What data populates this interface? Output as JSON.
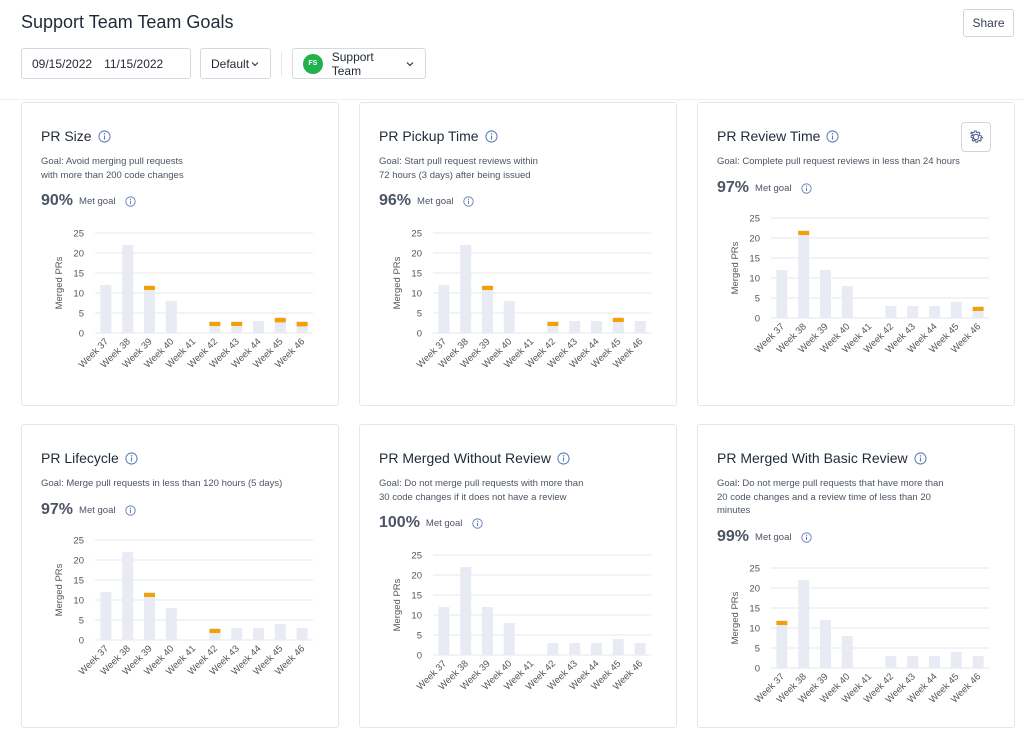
{
  "header": {
    "title": "Support Team Team Goals",
    "share_label": "Share",
    "date_start": "09/15/2022",
    "date_end": "11/15/2022",
    "view_select": "Default",
    "team_initials": "FS",
    "team_name": "Support Team",
    "team_color": "#22b14c"
  },
  "colors": {
    "bar": "#e8ebf3",
    "marker": "#f5a000",
    "grid": "#e5e7eb",
    "axis_text": "#555555"
  },
  "cards": [
    {
      "title": "PR Size",
      "goal": "Goal: Avoid merging pull requests with more than 200 code changes",
      "percent": "90%",
      "met_label": "Met goal",
      "chart_data": {
        "type": "bar",
        "ylabel": "Merged PRs",
        "ylim": [
          0,
          25
        ],
        "yticks": [
          "0",
          "5",
          "10",
          "15",
          "20",
          "25"
        ],
        "categories": [
          "Week 37",
          "Week 38",
          "Week 39",
          "Week 40",
          "Week 41",
          "Week 42",
          "Week 43",
          "Week 44",
          "Week 45",
          "Week 46"
        ],
        "values": [
          12,
          22,
          12,
          8,
          0,
          3,
          3,
          3,
          4,
          3
        ],
        "missed_goal": [
          0,
          0,
          1,
          0,
          0,
          1,
          1,
          0,
          2,
          2
        ]
      }
    },
    {
      "title": "PR Pickup Time",
      "goal": "Goal: Start pull request reviews within 72 hours (3 days) after being issued",
      "percent": "96%",
      "met_label": "Met goal",
      "chart_data": {
        "type": "bar",
        "ylabel": "Merged PRs",
        "ylim": [
          0,
          25
        ],
        "yticks": [
          "0",
          "5",
          "10",
          "15",
          "20",
          "25"
        ],
        "categories": [
          "Week 37",
          "Week 38",
          "Week 39",
          "Week 40",
          "Week 41",
          "Week 42",
          "Week 43",
          "Week 44",
          "Week 45",
          "Week 46"
        ],
        "values": [
          12,
          22,
          12,
          8,
          0,
          3,
          3,
          3,
          4,
          3
        ],
        "missed_goal": [
          0,
          0,
          1,
          0,
          0,
          1,
          0,
          0,
          1,
          0
        ]
      }
    },
    {
      "title": "PR Review Time",
      "goal": "Goal: Complete pull request reviews in less than 24 hours",
      "percent": "97%",
      "met_label": "Met goal",
      "chart_data": {
        "type": "bar",
        "ylabel": "Merged PRs",
        "ylim": [
          0,
          25
        ],
        "yticks": [
          "0",
          "5",
          "10",
          "15",
          "20",
          "25"
        ],
        "categories": [
          "Week 37",
          "Week 38",
          "Week 39",
          "Week 40",
          "Week 41",
          "Week 42",
          "Week 43",
          "Week 44",
          "Week 45",
          "Week 46"
        ],
        "values": [
          12,
          22,
          12,
          8,
          0,
          3,
          3,
          3,
          4,
          3
        ],
        "missed_goal": [
          0,
          1,
          0,
          0,
          0,
          0,
          0,
          0,
          0,
          1
        ]
      }
    },
    {
      "title": "PR Lifecycle",
      "goal": "Goal: Merge pull requests in less than 120 hours (5 days)",
      "percent": "97%",
      "met_label": "Met goal",
      "chart_data": {
        "type": "bar",
        "ylabel": "Merged PRs",
        "ylim": [
          0,
          25
        ],
        "yticks": [
          "0",
          "5",
          "10",
          "15",
          "20",
          "25"
        ],
        "categories": [
          "Week 37",
          "Week 38",
          "Week 39",
          "Week 40",
          "Week 41",
          "Week 42",
          "Week 43",
          "Week 44",
          "Week 45",
          "Week 46"
        ],
        "values": [
          12,
          22,
          12,
          8,
          0,
          3,
          3,
          3,
          4,
          3
        ],
        "missed_goal": [
          0,
          0,
          1,
          0,
          0,
          1,
          0,
          0,
          0,
          0
        ]
      }
    },
    {
      "title": "PR Merged Without Review",
      "goal": "Goal: Do not merge pull requests with more than 30 code changes if it does not have a review",
      "percent": "100%",
      "met_label": "Met goal",
      "chart_data": {
        "type": "bar",
        "ylabel": "Merged PRs",
        "ylim": [
          0,
          25
        ],
        "yticks": [
          "0",
          "5",
          "10",
          "15",
          "20",
          "25"
        ],
        "categories": [
          "Week 37",
          "Week 38",
          "Week 39",
          "Week 40",
          "Week 41",
          "Week 42",
          "Week 43",
          "Week 44",
          "Week 45",
          "Week 46"
        ],
        "values": [
          12,
          22,
          12,
          8,
          0,
          3,
          3,
          3,
          4,
          3
        ],
        "missed_goal": [
          0,
          0,
          0,
          0,
          0,
          0,
          0,
          0,
          0,
          0
        ]
      }
    },
    {
      "title": "PR Merged With Basic Review",
      "goal": "Goal: Do not merge pull requests that have more than 20 code changes and a review time of less than 20 minutes",
      "percent": "99%",
      "met_label": "Met goal",
      "chart_data": {
        "type": "bar",
        "ylabel": "Merged PRs",
        "ylim": [
          0,
          25
        ],
        "yticks": [
          "0",
          "5",
          "10",
          "15",
          "20",
          "25"
        ],
        "categories": [
          "Week 37",
          "Week 38",
          "Week 39",
          "Week 40",
          "Week 41",
          "Week 42",
          "Week 43",
          "Week 44",
          "Week 45",
          "Week 46"
        ],
        "values": [
          12,
          22,
          12,
          8,
          0,
          3,
          3,
          3,
          4,
          3
        ],
        "missed_goal": [
          1,
          0,
          0,
          0,
          0,
          0,
          0,
          0,
          0,
          0
        ]
      }
    }
  ]
}
